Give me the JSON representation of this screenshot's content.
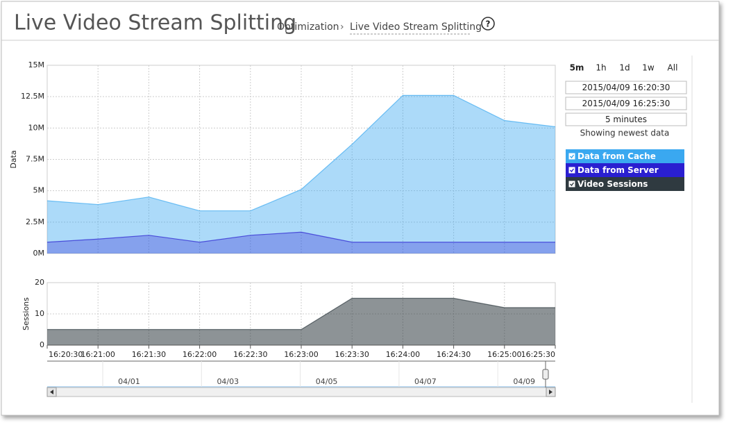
{
  "header": {
    "title": "Live Video Stream Splitting",
    "breadcrumb": [
      "Optimization",
      "Live Video Stream Splitting"
    ]
  },
  "range_buttons": [
    "5m",
    "1h",
    "1d",
    "1w",
    "All"
  ],
  "range": {
    "start": "2015/04/09 16:20:30",
    "end": "2015/04/09 16:25:30",
    "duration": "5 minutes",
    "status": "Showing newest data"
  },
  "chart_data": [
    {
      "type": "area",
      "y_label": "Data",
      "x": [
        "16:20:30",
        "16:21:00",
        "16:21:30",
        "16:22:00",
        "16:22:30",
        "16:23:00",
        "16:23:30",
        "16:24:00",
        "16:24:30",
        "16:25:00",
        "16:25:30"
      ],
      "series": [
        {
          "name": "Data from Cache",
          "color": "#3aa8f0",
          "values": [
            4200000,
            3900000,
            4500000,
            3400000,
            3400000,
            5100000,
            8700000,
            12600000,
            12600000,
            10600000,
            10100000
          ]
        },
        {
          "name": "Data from Server",
          "color": "#2a1fd0",
          "values": [
            900000,
            1150000,
            1450000,
            900000,
            1450000,
            1700000,
            900000,
            900000,
            900000,
            900000,
            900000
          ]
        }
      ],
      "ylim": [
        0,
        15000000
      ],
      "yticks": [
        {
          "value": 0,
          "label": "0M"
        },
        {
          "value": 2500000,
          "label": "2.5M"
        },
        {
          "value": 5000000,
          "label": "5M"
        },
        {
          "value": 7500000,
          "label": "7.5M"
        },
        {
          "value": 10000000,
          "label": "10M"
        },
        {
          "value": 12500000,
          "label": "12.5M"
        },
        {
          "value": 15000000,
          "label": "15M"
        }
      ],
      "grid": true
    },
    {
      "type": "area",
      "y_label": "Sessions",
      "x": [
        "16:20:30",
        "16:21:00",
        "16:21:30",
        "16:22:00",
        "16:22:30",
        "16:23:00",
        "16:23:30",
        "16:24:00",
        "16:24:30",
        "16:25:00",
        "16:25:30"
      ],
      "series": [
        {
          "name": "Video Sessions",
          "color": "#2f3a40",
          "values": [
            5,
            5,
            5,
            5,
            5,
            5,
            15,
            15,
            15,
            12,
            12
          ]
        }
      ],
      "ylim": [
        0,
        20
      ],
      "yticks": [
        0,
        10,
        20
      ],
      "grid": true
    }
  ],
  "navigator": {
    "labels": [
      "04/01",
      "04/03",
      "04/05",
      "04/07",
      "04/09"
    ]
  }
}
